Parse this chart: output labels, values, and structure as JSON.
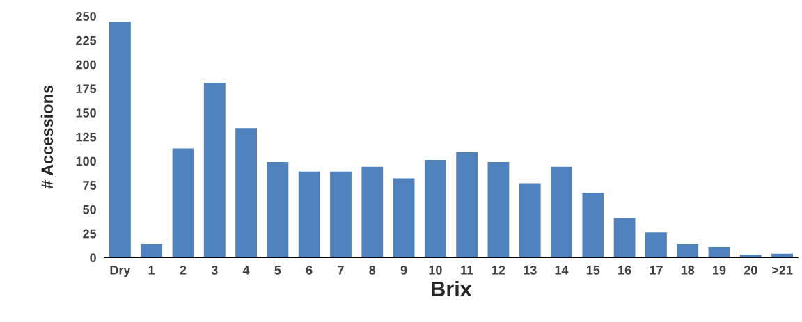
{
  "chart_data": {
    "type": "bar",
    "xlabel": "Brix",
    "ylabel": "# Accessions",
    "categories": [
      "Dry",
      "1",
      "2",
      "3",
      "4",
      "5",
      "6",
      "7",
      "8",
      "9",
      "10",
      "11",
      "12",
      "13",
      "14",
      "15",
      "16",
      "17",
      "18",
      "19",
      "20",
      ">21"
    ],
    "values": [
      244,
      14,
      113,
      181,
      134,
      99,
      89,
      89,
      94,
      82,
      101,
      109,
      99,
      77,
      94,
      67,
      41,
      26,
      14,
      11,
      3,
      4
    ],
    "color": "#4f81bd",
    "ylim": [
      0,
      250
    ],
    "yticks": [
      0,
      25,
      50,
      75,
      100,
      125,
      150,
      175,
      200,
      225,
      250
    ],
    "grid": false
  }
}
